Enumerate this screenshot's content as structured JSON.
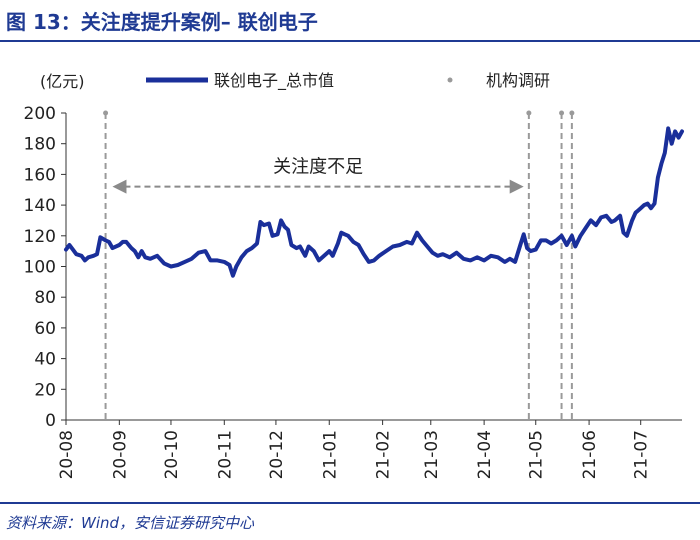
{
  "figure": {
    "title": "图 13：关注度提升案例– 联创电子",
    "source": "资料来源：Wind，安信证券研究中心"
  },
  "colors": {
    "line": "#1a2f9a",
    "header": "#1f3a93",
    "marker": "#9a9a9a"
  },
  "chart_data": {
    "type": "line",
    "title": "",
    "ylabel": "(亿元)",
    "xlabel": "",
    "ylim": [
      0,
      200
    ],
    "yticks": [
      0,
      20,
      40,
      60,
      80,
      100,
      120,
      140,
      160,
      180,
      200
    ],
    "xlim": [
      "2020-08-01",
      "2021-07-25"
    ],
    "xticks": [
      {
        "date": "2020-08-01",
        "label": "20-08"
      },
      {
        "date": "2020-09-01",
        "label": "20-09"
      },
      {
        "date": "2020-10-01",
        "label": "20-10"
      },
      {
        "date": "2020-11-01",
        "label": "20-11"
      },
      {
        "date": "2020-12-01",
        "label": "20-12"
      },
      {
        "date": "2021-01-01",
        "label": "21-01"
      },
      {
        "date": "2021-02-01",
        "label": "21-02"
      },
      {
        "date": "2021-03-01",
        "label": "21-03"
      },
      {
        "date": "2021-04-01",
        "label": "21-04"
      },
      {
        "date": "2021-05-01",
        "label": "21-05"
      },
      {
        "date": "2021-06-01",
        "label": "21-06"
      },
      {
        "date": "2021-07-01",
        "label": "21-07"
      }
    ],
    "grid": false,
    "legend": {
      "placement": "top",
      "line_label": "联创电子_总市值",
      "marker_label": "机构调研"
    },
    "series": [
      {
        "name": "联创电子_总市值",
        "points": [
          [
            "2020-08-01",
            111
          ],
          [
            "2020-08-03",
            114
          ],
          [
            "2020-08-05",
            111
          ],
          [
            "2020-08-07",
            108
          ],
          [
            "2020-08-10",
            107
          ],
          [
            "2020-08-12",
            104
          ],
          [
            "2020-08-14",
            106
          ],
          [
            "2020-08-17",
            107
          ],
          [
            "2020-08-19",
            108
          ],
          [
            "2020-08-21",
            119
          ],
          [
            "2020-08-24",
            117
          ],
          [
            "2020-08-26",
            116
          ],
          [
            "2020-08-28",
            112
          ],
          [
            "2020-09-01",
            114
          ],
          [
            "2020-09-03",
            116
          ],
          [
            "2020-09-05",
            116
          ],
          [
            "2020-09-08",
            112
          ],
          [
            "2020-09-10",
            110
          ],
          [
            "2020-09-12",
            106
          ],
          [
            "2020-09-14",
            110
          ],
          [
            "2020-09-16",
            106
          ],
          [
            "2020-09-19",
            105
          ],
          [
            "2020-09-23",
            107
          ],
          [
            "2020-09-27",
            102
          ],
          [
            "2020-10-01",
            100
          ],
          [
            "2020-10-05",
            101
          ],
          [
            "2020-10-09",
            103
          ],
          [
            "2020-10-13",
            105
          ],
          [
            "2020-10-17",
            109
          ],
          [
            "2020-10-21",
            110
          ],
          [
            "2020-10-24",
            104
          ],
          [
            "2020-10-28",
            104
          ],
          [
            "2020-11-01",
            103
          ],
          [
            "2020-11-04",
            101
          ],
          [
            "2020-11-06",
            94
          ],
          [
            "2020-11-08",
            100
          ],
          [
            "2020-11-11",
            106
          ],
          [
            "2020-11-14",
            110
          ],
          [
            "2020-11-17",
            112
          ],
          [
            "2020-11-20",
            115
          ],
          [
            "2020-11-22",
            129
          ],
          [
            "2020-11-24",
            127
          ],
          [
            "2020-11-27",
            128
          ],
          [
            "2020-11-29",
            120
          ],
          [
            "2020-12-02",
            121
          ],
          [
            "2020-12-04",
            130
          ],
          [
            "2020-12-06",
            126
          ],
          [
            "2020-12-08",
            124
          ],
          [
            "2020-12-10",
            114
          ],
          [
            "2020-12-13",
            112
          ],
          [
            "2020-12-15",
            113
          ],
          [
            "2020-12-18",
            107
          ],
          [
            "2020-12-20",
            113
          ],
          [
            "2020-12-23",
            110
          ],
          [
            "2020-12-26",
            104
          ],
          [
            "2020-12-29",
            107
          ],
          [
            "2021-01-01",
            110
          ],
          [
            "2021-01-03",
            107
          ],
          [
            "2021-01-06",
            115
          ],
          [
            "2021-01-08",
            122
          ],
          [
            "2021-01-10",
            121
          ],
          [
            "2021-01-12",
            120
          ],
          [
            "2021-01-15",
            116
          ],
          [
            "2021-01-18",
            114
          ],
          [
            "2021-01-21",
            108
          ],
          [
            "2021-01-24",
            103
          ],
          [
            "2021-01-27",
            104
          ],
          [
            "2021-01-30",
            107
          ],
          [
            "2021-02-03",
            110
          ],
          [
            "2021-02-07",
            113
          ],
          [
            "2021-02-11",
            114
          ],
          [
            "2021-02-15",
            116
          ],
          [
            "2021-02-18",
            115
          ],
          [
            "2021-02-21",
            122
          ],
          [
            "2021-02-24",
            117
          ],
          [
            "2021-02-27",
            113
          ],
          [
            "2021-03-02",
            109
          ],
          [
            "2021-03-05",
            107
          ],
          [
            "2021-03-08",
            108
          ],
          [
            "2021-03-12",
            106
          ],
          [
            "2021-03-16",
            109
          ],
          [
            "2021-03-20",
            105
          ],
          [
            "2021-03-24",
            104
          ],
          [
            "2021-03-28",
            106
          ],
          [
            "2021-04-01",
            104
          ],
          [
            "2021-04-05",
            107
          ],
          [
            "2021-04-09",
            106
          ],
          [
            "2021-04-13",
            103
          ],
          [
            "2021-04-16",
            105
          ],
          [
            "2021-04-19",
            103
          ],
          [
            "2021-04-22",
            114
          ],
          [
            "2021-04-24",
            121
          ],
          [
            "2021-04-26",
            112
          ],
          [
            "2021-04-28",
            110
          ],
          [
            "2021-05-01",
            111
          ],
          [
            "2021-05-04",
            117
          ],
          [
            "2021-05-07",
            117
          ],
          [
            "2021-05-10",
            115
          ],
          [
            "2021-05-13",
            117
          ],
          [
            "2021-05-16",
            120
          ],
          [
            "2021-05-19",
            114
          ],
          [
            "2021-05-22",
            120
          ],
          [
            "2021-05-24",
            113
          ],
          [
            "2021-05-27",
            120
          ],
          [
            "2021-05-30",
            125
          ],
          [
            "2021-06-02",
            130
          ],
          [
            "2021-06-05",
            127
          ],
          [
            "2021-06-08",
            132
          ],
          [
            "2021-06-11",
            133
          ],
          [
            "2021-06-14",
            129
          ],
          [
            "2021-06-16",
            130
          ],
          [
            "2021-06-19",
            133
          ],
          [
            "2021-06-21",
            122
          ],
          [
            "2021-06-23",
            120
          ],
          [
            "2021-06-26",
            130
          ],
          [
            "2021-06-28",
            135
          ],
          [
            "2021-07-01",
            138
          ],
          [
            "2021-07-03",
            140
          ],
          [
            "2021-07-05",
            141
          ],
          [
            "2021-07-07",
            138
          ],
          [
            "2021-07-09",
            141
          ],
          [
            "2021-07-11",
            158
          ],
          [
            "2021-07-13",
            167
          ],
          [
            "2021-07-15",
            174
          ],
          [
            "2021-07-17",
            190
          ],
          [
            "2021-07-19",
            180
          ],
          [
            "2021-07-21",
            188
          ],
          [
            "2021-07-23",
            184
          ],
          [
            "2021-07-25",
            188
          ]
        ]
      }
    ],
    "markers": {
      "name": "机构调研",
      "dates": [
        "2020-08-24",
        "2021-04-27",
        "2021-05-16",
        "2021-05-22"
      ]
    },
    "annotations": [
      {
        "text": "关注度不足",
        "from": "2020-08-28",
        "to": "2021-04-24",
        "y": 152
      }
    ]
  }
}
